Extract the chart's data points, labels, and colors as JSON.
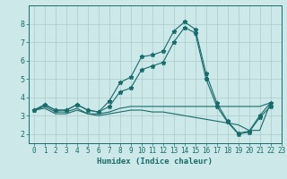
{
  "xlabel": "Humidex (Indice chaleur)",
  "ylabel": "",
  "xlim": [
    -0.5,
    23
  ],
  "ylim": [
    1.5,
    9.0
  ],
  "yticks": [
    2,
    3,
    4,
    5,
    6,
    7,
    8
  ],
  "xticks": [
    0,
    1,
    2,
    3,
    4,
    5,
    6,
    7,
    8,
    9,
    10,
    11,
    12,
    13,
    14,
    15,
    16,
    17,
    18,
    19,
    20,
    21,
    22,
    23
  ],
  "background_color": "#cce8e8",
  "grid_color": "#aacccc",
  "line_color": "#1a6b6b",
  "line1_x": [
    0,
    1,
    2,
    3,
    4,
    5,
    6,
    7,
    8,
    9,
    10,
    11,
    12,
    13,
    14,
    15,
    16,
    17,
    18,
    19,
    20,
    21,
    22
  ],
  "line1_y": [
    3.3,
    3.6,
    3.3,
    3.3,
    3.6,
    3.3,
    3.2,
    3.8,
    4.8,
    5.1,
    6.2,
    6.3,
    6.5,
    7.6,
    8.1,
    7.7,
    5.3,
    3.7,
    2.7,
    2.05,
    2.15,
    3.0,
    3.7
  ],
  "line2_x": [
    0,
    1,
    2,
    3,
    4,
    5,
    6,
    7,
    8,
    9,
    10,
    11,
    12,
    13,
    14,
    15,
    16,
    17,
    18,
    19,
    20,
    21,
    22
  ],
  "line2_y": [
    3.3,
    3.6,
    3.3,
    3.3,
    3.6,
    3.3,
    3.2,
    3.5,
    4.3,
    4.5,
    5.5,
    5.7,
    5.9,
    7.0,
    7.8,
    7.5,
    5.0,
    3.5,
    2.65,
    2.0,
    2.1,
    2.9,
    3.5
  ],
  "line3_x": [
    0,
    1,
    2,
    3,
    4,
    5,
    6,
    7,
    8,
    9,
    10,
    11,
    12,
    13,
    14,
    15,
    16,
    17,
    18,
    19,
    20,
    21,
    22
  ],
  "line3_y": [
    3.3,
    3.5,
    3.2,
    3.2,
    3.4,
    3.1,
    3.1,
    3.2,
    3.4,
    3.5,
    3.5,
    3.5,
    3.5,
    3.5,
    3.5,
    3.5,
    3.5,
    3.5,
    3.5,
    3.5,
    3.5,
    3.5,
    3.7
  ],
  "line4_x": [
    0,
    1,
    2,
    3,
    4,
    5,
    6,
    7,
    8,
    9,
    10,
    11,
    12,
    13,
    14,
    15,
    16,
    17,
    18,
    19,
    20,
    21,
    22
  ],
  "line4_y": [
    3.3,
    3.4,
    3.1,
    3.1,
    3.3,
    3.1,
    3.0,
    3.1,
    3.2,
    3.3,
    3.3,
    3.2,
    3.2,
    3.1,
    3.0,
    2.9,
    2.8,
    2.7,
    2.6,
    2.5,
    2.2,
    2.2,
    3.7
  ]
}
